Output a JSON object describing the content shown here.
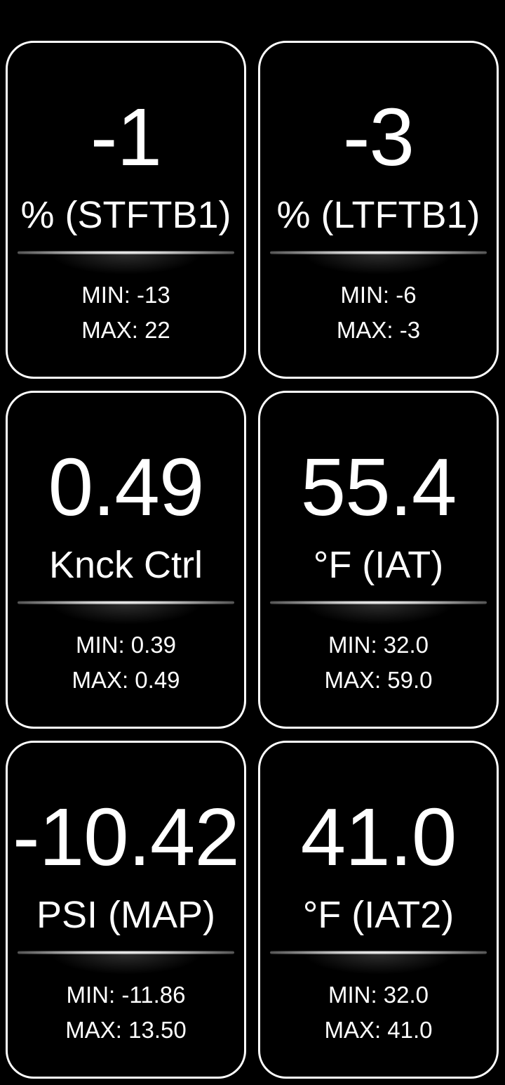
{
  "gauges": [
    {
      "value": "-1",
      "unit": "% (STFTB1)",
      "min": "MIN: -13",
      "max": "MAX: 22"
    },
    {
      "value": "-3",
      "unit": "% (LTFTB1)",
      "min": "MIN: -6",
      "max": "MAX: -3"
    },
    {
      "value": "0.49",
      "unit": "Knck Ctrl",
      "min": "MIN: 0.39",
      "max": "MAX: 0.49"
    },
    {
      "value": "55.4",
      "unit": "°F (IAT)",
      "min": "MIN: 32.0",
      "max": "MAX: 59.0"
    },
    {
      "value": "-10.42",
      "unit": "PSI (MAP)",
      "min": "MIN: -11.86",
      "max": "MAX: 13.50"
    },
    {
      "value": "41.0",
      "unit": "°F (IAT2)",
      "min": "MIN: 32.0",
      "max": "MAX: 41.0"
    }
  ]
}
